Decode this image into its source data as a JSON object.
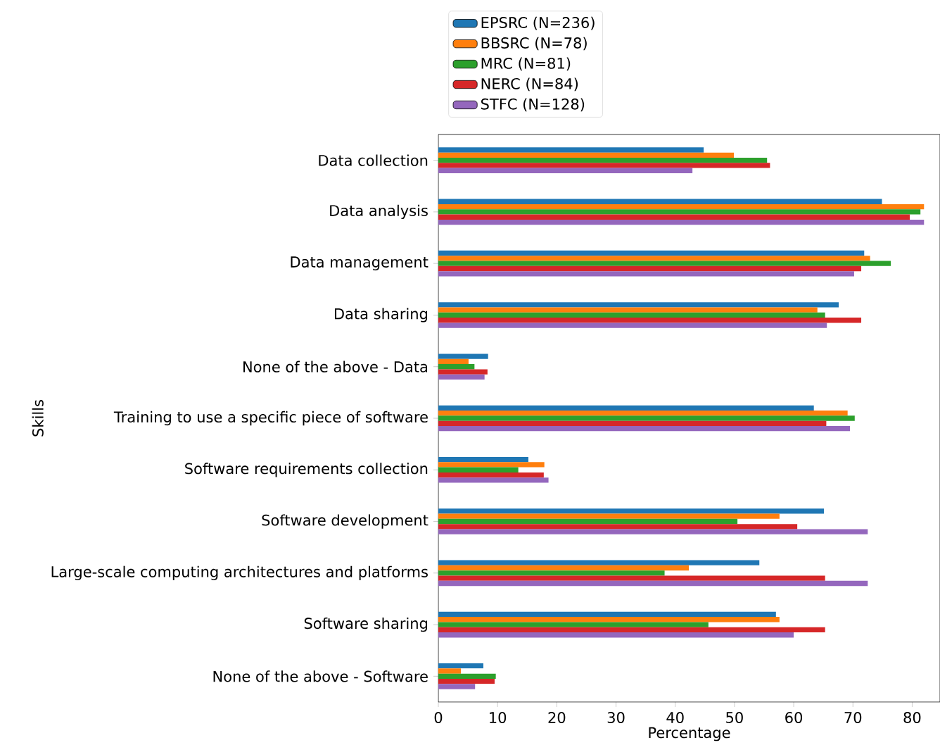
{
  "chart_data": {
    "type": "bar",
    "orientation": "horizontal",
    "xlabel": "Percentage",
    "ylabel": "Skills",
    "categories": [
      "Data collection",
      "Data analysis",
      "Data management",
      "Data sharing",
      "None of the above - Data",
      "Training to use a specific piece of software",
      "Software requirements collection",
      "Software development",
      "Large-scale computing architectures and platforms",
      "Software sharing",
      "None of the above - Software"
    ],
    "series": [
      {
        "name": "EPSRC (N=236)",
        "color": "#1f77b4",
        "values": [
          44.8,
          74.9,
          71.9,
          67.6,
          8.4,
          63.4,
          15.2,
          65.1,
          54.2,
          57.0,
          7.6
        ]
      },
      {
        "name": "BBSRC (N=78)",
        "color": "#ff7f0e",
        "values": [
          49.9,
          82.0,
          72.9,
          64.0,
          5.1,
          69.1,
          17.9,
          57.6,
          42.3,
          57.6,
          3.8
        ]
      },
      {
        "name": "MRC (N=81)",
        "color": "#2ca02c",
        "values": [
          55.5,
          81.4,
          76.4,
          65.3,
          6.1,
          70.3,
          13.5,
          50.5,
          38.2,
          45.6,
          9.7
        ]
      },
      {
        "name": "NERC (N=84)",
        "color": "#d62728",
        "values": [
          56.0,
          79.6,
          71.4,
          71.4,
          8.3,
          65.5,
          17.8,
          60.6,
          65.3,
          65.3,
          9.5
        ]
      },
      {
        "name": "STFC (N=128)",
        "color": "#9467bd",
        "values": [
          42.9,
          82.0,
          70.2,
          65.6,
          7.8,
          69.5,
          18.6,
          72.5,
          72.5,
          60.0,
          6.2
        ]
      }
    ],
    "xlim": [
      0,
      84.7
    ],
    "xticks": [
      0,
      10,
      20,
      30,
      40,
      50,
      60,
      70,
      80
    ],
    "legend": "top left"
  }
}
